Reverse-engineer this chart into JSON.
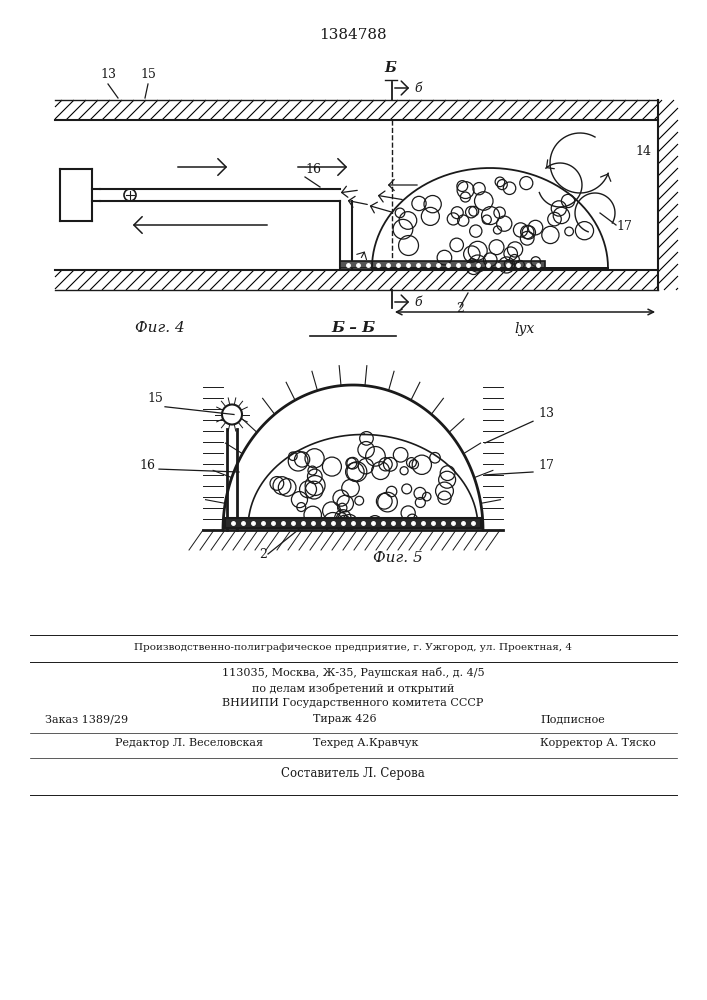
{
  "patent_number": "1384788",
  "footer": {
    "sostavitel": "Составитель Л. Серова",
    "redaktor": "Редактор Л. Веселовская",
    "tehred": "Техред А.Кравчук",
    "korrektor": "Корректор А. Тяско",
    "zakaz": "Заказ 1389/29",
    "tirazh": "Тираж 426",
    "podpisnoe": "Подписное",
    "vnipi": "ВНИИПИ Государственного комитета СССР",
    "po_delam": "по делам изобретений и открытий",
    "address": "113035, Москва, Ж-35, Раушская наб., д. 4/5",
    "proizv": "Производственно-полиграфическое предприятие, г. Ужгород, ул. Проектная, 4"
  }
}
